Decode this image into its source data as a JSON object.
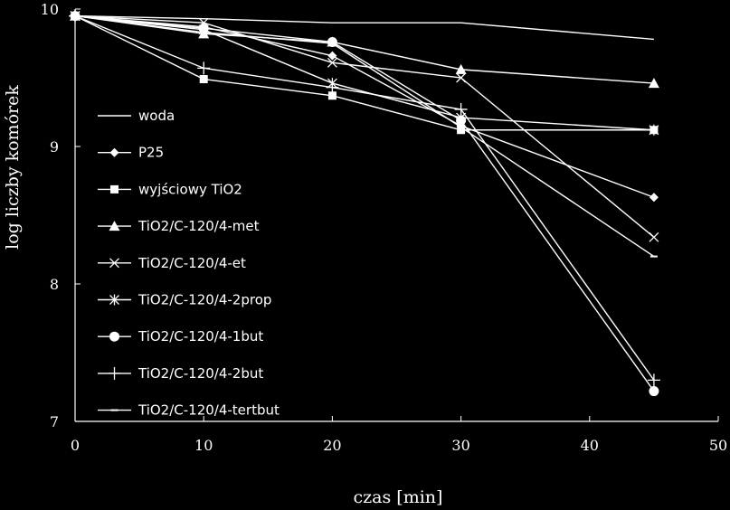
{
  "chart_data": {
    "type": "line",
    "title": "",
    "xlabel": "czas [min]",
    "ylabel": "log liczby komórek",
    "xlim": [
      0,
      50
    ],
    "ylim": [
      7,
      10
    ],
    "x_ticks": [
      0,
      10,
      20,
      30,
      40,
      50
    ],
    "y_ticks": [
      7,
      8,
      9,
      10
    ],
    "grid": false,
    "legend_position": "left-center",
    "colors": {
      "background": "#000000",
      "foreground": "#ffffff"
    },
    "x": [
      0,
      10,
      20,
      30,
      45
    ],
    "series": [
      {
        "name": "woda",
        "marker": "none",
        "values": [
          9.95,
          9.93,
          9.9,
          9.9,
          9.78
        ]
      },
      {
        "name": "P25",
        "marker": "diamond",
        "values": [
          9.95,
          9.87,
          9.66,
          9.15,
          8.63
        ]
      },
      {
        "name": "wyjściowy TiO2",
        "marker": "square",
        "values": [
          9.95,
          9.49,
          9.37,
          9.12,
          9.12
        ]
      },
      {
        "name": "TiO2/C-120/4-met",
        "marker": "triangle",
        "values": [
          9.95,
          9.82,
          9.76,
          9.56,
          9.46
        ]
      },
      {
        "name": "TiO2/C-120/4-et",
        "marker": "x",
        "values": [
          9.95,
          9.9,
          9.61,
          9.5,
          8.34
        ]
      },
      {
        "name": "TiO2/C-120/4-2prop",
        "marker": "asterisk",
        "values": [
          9.95,
          9.85,
          9.46,
          9.21,
          9.12
        ]
      },
      {
        "name": "TiO2/C-120/4-1but",
        "marker": "circle",
        "values": [
          9.95,
          9.86,
          9.76,
          9.19,
          7.22
        ]
      },
      {
        "name": "TiO2/C-120/4-2but",
        "marker": "plus",
        "values": [
          9.95,
          9.57,
          9.43,
          9.27,
          7.3
        ]
      },
      {
        "name": "TiO2/C-120/4-tertbut",
        "marker": "dash",
        "values": [
          9.95,
          9.83,
          9.75,
          9.14,
          8.2
        ]
      }
    ]
  }
}
